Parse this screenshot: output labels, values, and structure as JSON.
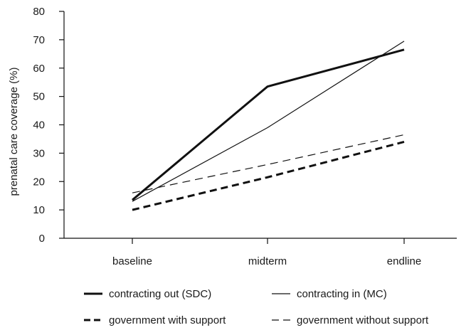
{
  "chart_data": {
    "type": "line",
    "title": "",
    "xlabel": "",
    "ylabel": "prenatal care coverage (%)",
    "categories": [
      "baseline",
      "midterm",
      "endline"
    ],
    "ylim": [
      0,
      80
    ],
    "yticks": [
      0,
      10,
      20,
      30,
      40,
      50,
      60,
      70,
      80
    ],
    "grid": false,
    "legend_position": "bottom",
    "series": [
      {
        "name": "contracting out (SDC)",
        "values": [
          13.5,
          53.5,
          66.5
        ],
        "style": "thick-solid",
        "color": "#111111"
      },
      {
        "name": "contracting in (MC)",
        "values": [
          13,
          39,
          69.5
        ],
        "style": "thin-solid",
        "color": "#111111"
      },
      {
        "name": "government with support",
        "values": [
          10,
          21.5,
          34
        ],
        "style": "thick-dashed",
        "color": "#111111"
      },
      {
        "name": "government without support",
        "values": [
          16,
          26,
          36.5
        ],
        "style": "thin-dashed",
        "color": "#111111"
      }
    ]
  }
}
